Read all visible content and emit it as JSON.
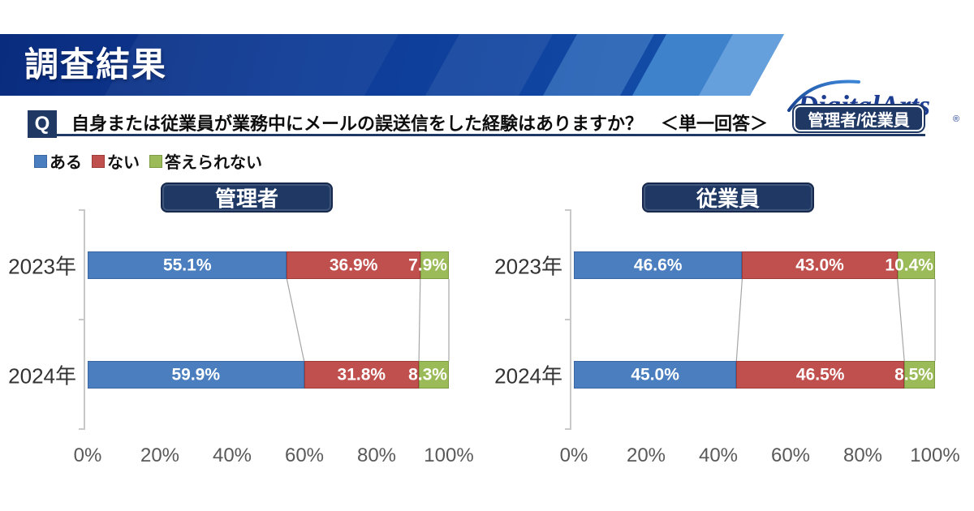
{
  "header": {
    "title": "調査結果",
    "logo_text": "DigitalArts",
    "logo_reg": "®"
  },
  "question": {
    "q_label": "Q",
    "text": "自身または従業員が業務中にメールの誤送信をした経験はありますか？　＜単一回答＞",
    "badge_label": "管理者/従業員"
  },
  "legend": [
    {
      "label": "ある",
      "color": "#4A7EBE",
      "border": "#3A67A3"
    },
    {
      "label": "ない",
      "color": "#C0504D",
      "border": "#9E3B38"
    },
    {
      "label": "答えられない",
      "color": "#9BBB59",
      "border": "#7E9B44"
    }
  ],
  "colors": {
    "navy": "#1F3864",
    "header_blue_dark": "#0a2c7e",
    "header_blue_light": "#66a0dc",
    "logo_navy": "#1C3D91",
    "axis_gray": "#c9c9c9",
    "tick_text_gray": "#595959",
    "connector_gray": "#a6a6a6"
  },
  "chart_data": [
    {
      "type": "bar",
      "orientation": "horizontal",
      "stacked": true,
      "title": "管理者",
      "categories": [
        "2023年",
        "2024年"
      ],
      "series": [
        {
          "name": "ある",
          "color": "#4A7EBE",
          "border": "#3A67A3",
          "values": [
            55.1,
            59.9
          ]
        },
        {
          "name": "ない",
          "color": "#C0504D",
          "border": "#9E3B38",
          "values": [
            36.9,
            31.8
          ]
        },
        {
          "name": "答えられない",
          "color": "#9BBB59",
          "border": "#7E9B44",
          "values": [
            7.9,
            8.3
          ]
        }
      ],
      "x_ticks": [
        "0%",
        "20%",
        "40%",
        "60%",
        "80%",
        "100%"
      ],
      "xlim": [
        0,
        100
      ],
      "value_suffix": "%",
      "grid": false,
      "legend_position": "top-left"
    },
    {
      "type": "bar",
      "orientation": "horizontal",
      "stacked": true,
      "title": "従業員",
      "categories": [
        "2023年",
        "2024年"
      ],
      "series": [
        {
          "name": "ある",
          "color": "#4A7EBE",
          "border": "#3A67A3",
          "values": [
            46.6,
            45.0
          ]
        },
        {
          "name": "ない",
          "color": "#C0504D",
          "border": "#9E3B38",
          "values": [
            43.0,
            46.5
          ]
        },
        {
          "name": "答えられない",
          "color": "#9BBB59",
          "border": "#7E9B44",
          "values": [
            10.4,
            8.5
          ]
        }
      ],
      "x_ticks": [
        "0%",
        "20%",
        "40%",
        "60%",
        "80%",
        "100%"
      ],
      "xlim": [
        0,
        100
      ],
      "value_suffix": "%",
      "grid": false,
      "legend_position": "top-left"
    }
  ]
}
